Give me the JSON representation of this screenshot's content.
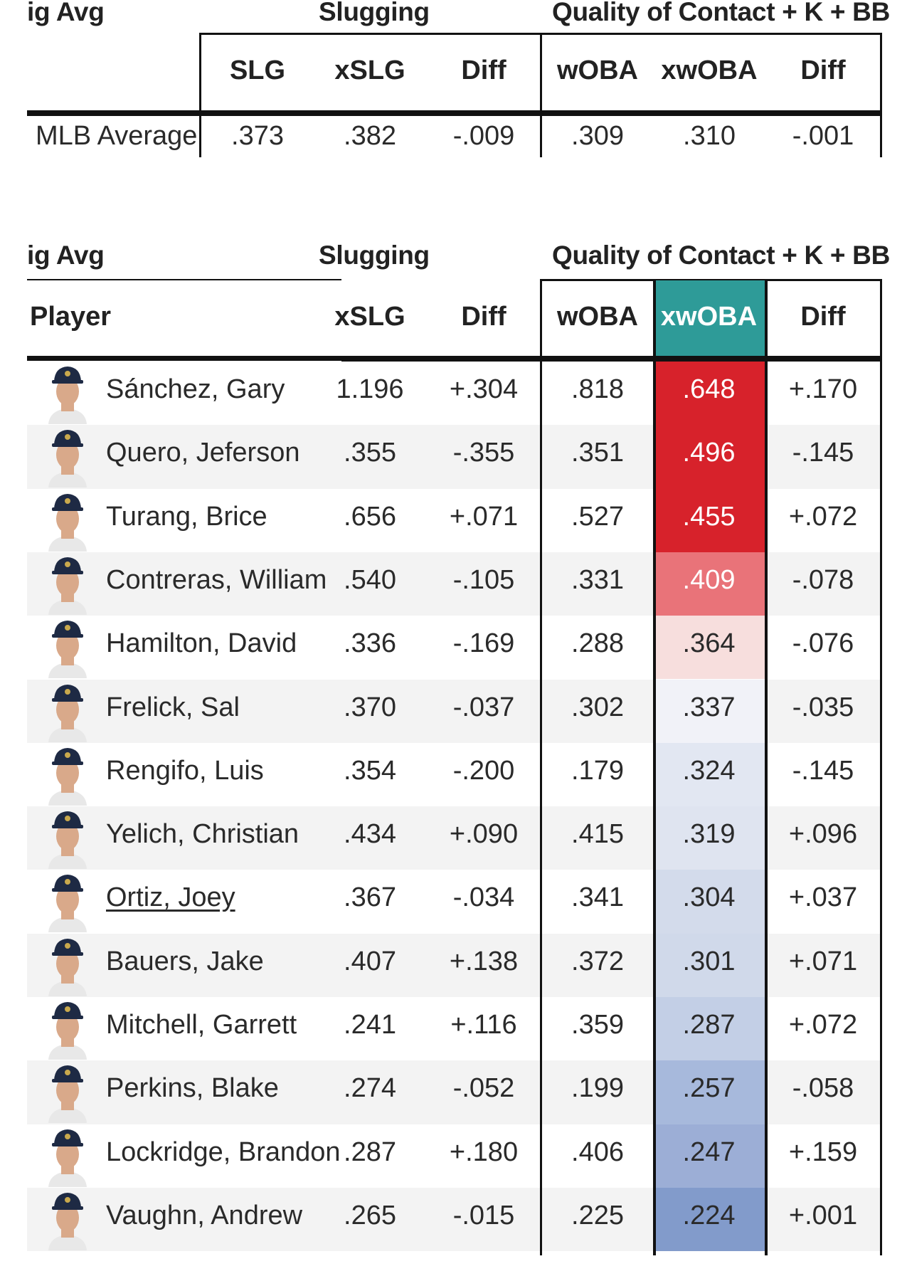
{
  "chart_data": [
    {
      "type": "table",
      "group_headers": [
        "ig Avg",
        "Slugging",
        "Quality of Contact + K + BB"
      ],
      "columns": [
        "",
        "SLG",
        "xSLG",
        "Diff",
        "wOBA",
        "xwOBA",
        "Diff"
      ],
      "rows": [
        {
          "label": "MLB Average",
          "values": [
            ".373",
            ".382",
            "-.009",
            ".309",
            ".310",
            "-.001"
          ]
        }
      ]
    },
    {
      "type": "table",
      "group_headers": [
        "ig Avg",
        "Slugging",
        "Quality of Contact + K + BB"
      ],
      "columns": [
        "Player",
        "xSLG",
        "Diff",
        "wOBA",
        "xwOBA",
        "Diff"
      ],
      "highlight_column": "xwOBA",
      "highlight_color": "#2e9b98",
      "rows": [
        {
          "player": "Sánchez, Gary",
          "xslg": "1.196",
          "diff1": "+.304",
          "woba": ".818",
          "xwoba": ".648",
          "diff2": "+.170",
          "xwoba_color": "#d7222b"
        },
        {
          "player": "Quero, Jeferson",
          "xslg": ".355",
          "diff1": "-.355",
          "woba": ".351",
          "xwoba": ".496",
          "diff2": "-.145",
          "xwoba_color": "#d7222b"
        },
        {
          "player": "Turang, Brice",
          "xslg": ".656",
          "diff1": "+.071",
          "woba": ".527",
          "xwoba": ".455",
          "diff2": "+.072",
          "xwoba_color": "#d7222b"
        },
        {
          "player": "Contreras, William",
          "xslg": ".540",
          "diff1": "-.105",
          "woba": ".331",
          "xwoba": ".409",
          "diff2": "-.078",
          "xwoba_color": "#e97379"
        },
        {
          "player": "Hamilton, David",
          "xslg": ".336",
          "diff1": "-.169",
          "woba": ".288",
          "xwoba": ".364",
          "diff2": "-.076",
          "xwoba_color": "#f7dedd"
        },
        {
          "player": "Frelick, Sal",
          "xslg": ".370",
          "diff1": "-.037",
          "woba": ".302",
          "xwoba": ".337",
          "diff2": "-.035",
          "xwoba_color": "#f1f2f8"
        },
        {
          "player": "Rengifo, Luis",
          "xslg": ".354",
          "diff1": "-.200",
          "woba": ".179",
          "xwoba": ".324",
          "diff2": "-.145",
          "xwoba_color": "#e2e7f2"
        },
        {
          "player": "Yelich, Christian",
          "xslg": ".434",
          "diff1": "+.090",
          "woba": ".415",
          "xwoba": ".319",
          "diff2": "+.096",
          "xwoba_color": "#dfe4f0"
        },
        {
          "player": "Ortiz, Joey",
          "xslg": ".367",
          "diff1": "-.034",
          "woba": ".341",
          "xwoba": ".304",
          "diff2": "+.037",
          "xwoba_color": "#d3dbeb",
          "link": true
        },
        {
          "player": "Bauers, Jake",
          "xslg": ".407",
          "diff1": "+.138",
          "woba": ".372",
          "xwoba": ".301",
          "diff2": "+.071",
          "xwoba_color": "#d0d9ea"
        },
        {
          "player": "Mitchell, Garrett",
          "xslg": ".241",
          "diff1": "+.116",
          "woba": ".359",
          "xwoba": ".287",
          "diff2": "+.072",
          "xwoba_color": "#c3cfe6"
        },
        {
          "player": "Perkins, Blake",
          "xslg": ".274",
          "diff1": "-.052",
          "woba": ".199",
          "xwoba": ".257",
          "diff2": "-.058",
          "xwoba_color": "#a7b9dc"
        },
        {
          "player": "Lockridge, Brandon",
          "xslg": ".287",
          "diff1": "+.180",
          "woba": ".406",
          "xwoba": ".247",
          "diff2": "+.159",
          "xwoba_color": "#9caed6"
        },
        {
          "player": "Vaughn, Andrew",
          "xslg": ".265",
          "diff1": "-.015",
          "woba": ".225",
          "xwoba": ".224",
          "diff2": "+.001",
          "xwoba_color": "#829bcb"
        }
      ]
    }
  ]
}
